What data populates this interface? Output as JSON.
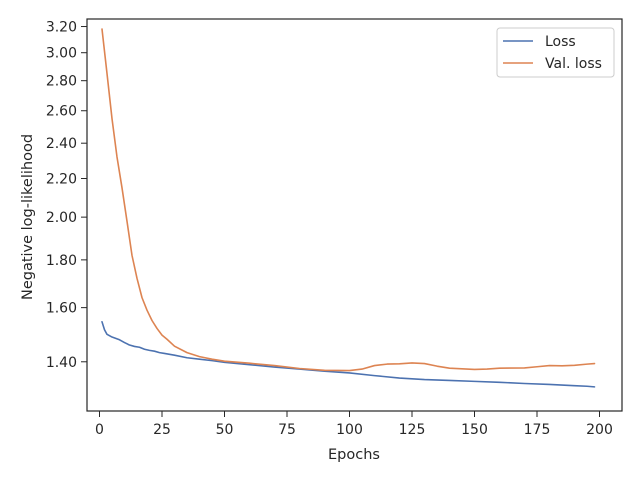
{
  "chart_data": {
    "type": "line",
    "xlabel": "Epochs",
    "ylabel": "Negative log-likelihood",
    "xlim": [
      -5,
      209
    ],
    "ylim": [
      1.24,
      3.26
    ],
    "y_scale": "log",
    "grid": false,
    "legend_position": "top-right",
    "x_ticks": [
      0,
      25,
      50,
      75,
      100,
      125,
      150,
      175,
      200
    ],
    "x_tick_labels": [
      "0",
      "25",
      "50",
      "75",
      "100",
      "125",
      "150",
      "175",
      "200"
    ],
    "y_ticks": [
      1.4,
      1.6,
      1.8,
      2.0,
      2.2,
      2.4,
      2.6,
      2.8,
      3.0,
      3.2
    ],
    "y_tick_labels": [
      "1.40",
      "1.60",
      "1.80",
      "2.00",
      "2.20",
      "2.40",
      "2.60",
      "2.80",
      "3.00",
      "3.20"
    ],
    "series": [
      {
        "name": "Loss",
        "color": "#4c72b0",
        "x": [
          1,
          2,
          3,
          5,
          8,
          10,
          12,
          14,
          16,
          18,
          20,
          22,
          24,
          26,
          28,
          30,
          35,
          40,
          45,
          50,
          60,
          70,
          80,
          90,
          100,
          110,
          120,
          130,
          140,
          150,
          160,
          170,
          180,
          190,
          195,
          198
        ],
        "y": [
          1.545,
          1.515,
          1.498,
          1.488,
          1.478,
          1.468,
          1.459,
          1.454,
          1.451,
          1.444,
          1.44,
          1.437,
          1.432,
          1.429,
          1.426,
          1.423,
          1.414,
          1.409,
          1.404,
          1.398,
          1.39,
          1.382,
          1.375,
          1.368,
          1.362,
          1.353,
          1.345,
          1.34,
          1.337,
          1.334,
          1.331,
          1.327,
          1.324,
          1.32,
          1.318,
          1.316
        ]
      },
      {
        "name": "Val. loss",
        "color": "#dd8452",
        "x": [
          1,
          3,
          5,
          7,
          9,
          11,
          13,
          15,
          17,
          19,
          21,
          23,
          25,
          27,
          30,
          35,
          40,
          45,
          50,
          60,
          70,
          80,
          90,
          100,
          105,
          110,
          115,
          120,
          125,
          130,
          135,
          140,
          145,
          150,
          155,
          160,
          170,
          175,
          180,
          185,
          190,
          195,
          198
        ],
        "y": [
          3.18,
          2.85,
          2.55,
          2.32,
          2.15,
          1.98,
          1.82,
          1.72,
          1.64,
          1.59,
          1.55,
          1.52,
          1.495,
          1.48,
          1.455,
          1.432,
          1.418,
          1.409,
          1.402,
          1.395,
          1.387,
          1.377,
          1.371,
          1.37,
          1.375,
          1.387,
          1.392,
          1.393,
          1.396,
          1.394,
          1.385,
          1.378,
          1.376,
          1.374,
          1.375,
          1.378,
          1.379,
          1.383,
          1.387,
          1.386,
          1.388,
          1.392,
          1.394
        ]
      }
    ]
  }
}
